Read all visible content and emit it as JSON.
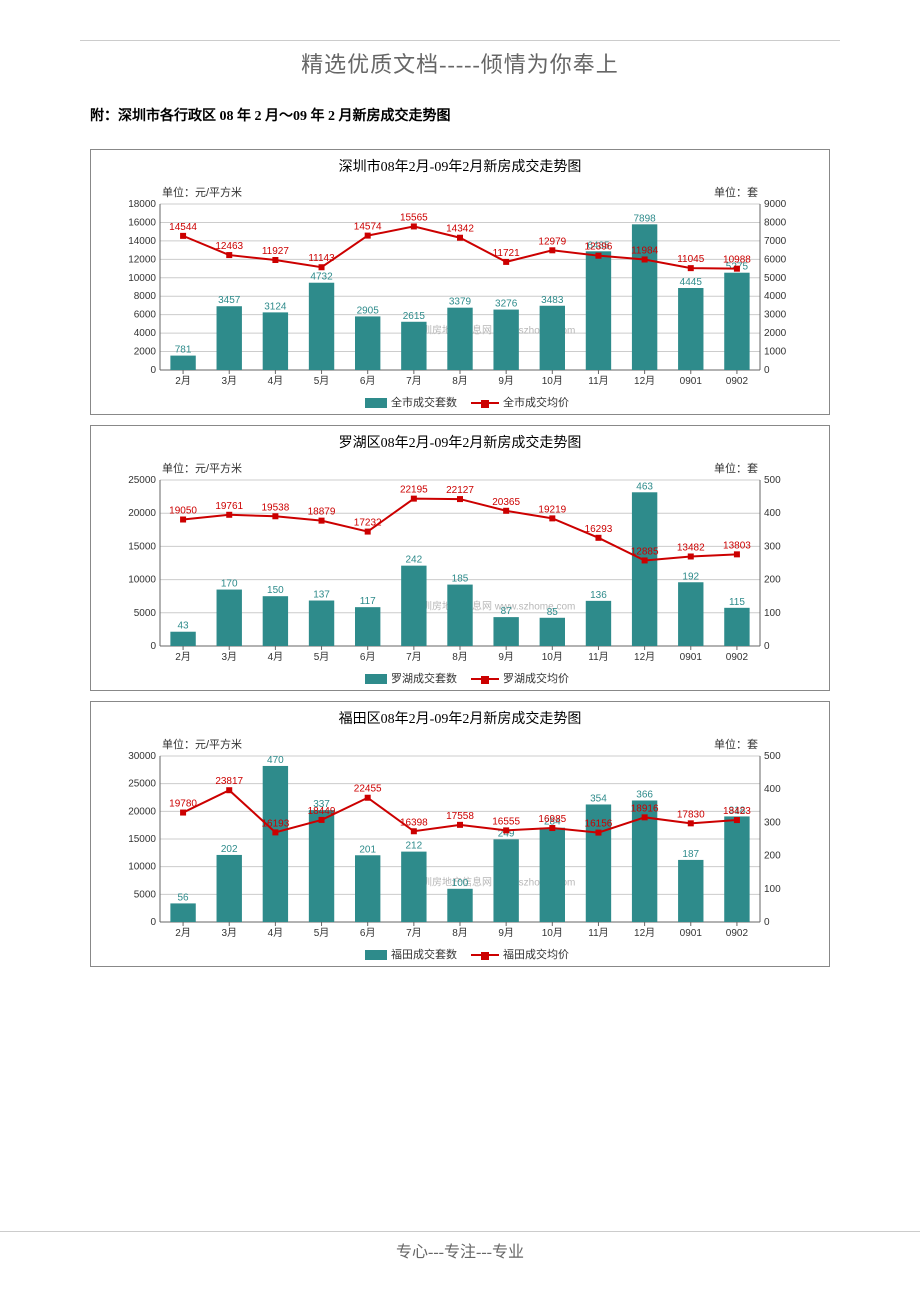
{
  "page_header": "精选优质文档-----倾情为你奉上",
  "page_footer": "专心---专注---专业",
  "attach_line": "附：深圳市各行政区 08 年 2 月～09 年 2 月新房成交走势图",
  "axis_font_size": 10,
  "data_label_font_size": 10,
  "title_font_size": 14,
  "bar_color": "#2e8b8b",
  "line_color": "#cc0000",
  "grid_color": "#cccccc",
  "axis_color": "#666666",
  "bar_width": 0.55,
  "left_unit_label": "单位：元/平方米",
  "right_unit_label": "单位：套",
  "watermark_text": "深圳房地产信息网 www.szhome.com",
  "charts": [
    {
      "title": "深圳市08年2月-09年2月新房成交走势图",
      "categories": [
        "2月",
        "3月",
        "4月",
        "5月",
        "6月",
        "7月",
        "8月",
        "9月",
        "10月",
        "11月",
        "12月",
        "0901",
        "0902"
      ],
      "bars": [
        781,
        3457,
        3124,
        4732,
        2905,
        2615,
        3379,
        3276,
        3483,
        6435,
        7898,
        4445,
        5275
      ],
      "line": [
        14544,
        12463,
        11927,
        11143,
        14574,
        15565,
        14342,
        11721,
        12979,
        12396,
        11984,
        11045,
        10988
      ],
      "left_max": 18000,
      "left_step": 2000,
      "right_max": 9000,
      "right_step": 1000,
      "legend_bar": "全市成交套数",
      "legend_line": "全市成交均价",
      "bar_label_color": "#2e8b8b",
      "line_label_color": "#cc0000"
    },
    {
      "title": "罗湖区08年2月-09年2月新房成交走势图",
      "categories": [
        "2月",
        "3月",
        "4月",
        "5月",
        "6月",
        "7月",
        "8月",
        "9月",
        "10月",
        "11月",
        "12月",
        "0901",
        "0902"
      ],
      "bars": [
        43,
        170,
        150,
        137,
        117,
        242,
        185,
        87,
        85,
        136,
        463,
        192,
        115
      ],
      "line": [
        19050,
        19761,
        19538,
        18879,
        17232,
        22195,
        22127,
        20365,
        19219,
        16293,
        12885,
        13482,
        13803
      ],
      "left_max": 25000,
      "left_step": 5000,
      "right_max": 500,
      "right_step": 100,
      "legend_bar": "罗湖成交套数",
      "legend_line": "罗湖成交均价",
      "bar_label_color": "#2e8b8b",
      "line_label_color": "#cc0000"
    },
    {
      "title": "福田区08年2月-09年2月新房成交走势图",
      "categories": [
        "2月",
        "3月",
        "4月",
        "5月",
        "6月",
        "7月",
        "8月",
        "9月",
        "10月",
        "11月",
        "12月",
        "0901",
        "0902"
      ],
      "bars": [
        56,
        202,
        470,
        337,
        201,
        212,
        100,
        249,
        284,
        354,
        366,
        187,
        318
      ],
      "line": [
        19780,
        23817,
        16193,
        18449,
        22455,
        16398,
        17558,
        16555,
        16985,
        16156,
        18916,
        17830,
        18423
      ],
      "left_max": 30000,
      "left_step": 5000,
      "right_max": 500,
      "right_step": 100,
      "legend_bar": "福田成交套数",
      "legend_line": "福田成交均价",
      "bar_label_color": "#2e8b8b",
      "line_label_color": "#cc0000"
    }
  ]
}
